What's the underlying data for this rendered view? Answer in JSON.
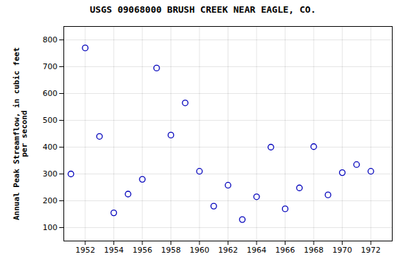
{
  "chart_data": {
    "type": "scatter",
    "title": "USGS 09068000 BRUSH CREEK NEAR EAGLE, CO.",
    "ylabel": "Annual Peak Streamflow, in cubic feet\nper second",
    "x": [
      1951,
      1952,
      1953,
      1954,
      1955,
      1956,
      1957,
      1958,
      1959,
      1960,
      1961,
      1962,
      1963,
      1964,
      1965,
      1966,
      1967,
      1968,
      1969,
      1970,
      1971,
      1972
    ],
    "values": [
      300,
      770,
      440,
      155,
      225,
      280,
      695,
      445,
      565,
      310,
      180,
      258,
      130,
      215,
      400,
      170,
      248,
      402,
      222,
      305,
      335,
      310
    ],
    "color": "#0000bb",
    "xlim": [
      1950.5,
      1973.5
    ],
    "ylim": [
      50,
      850
    ],
    "xticks": [
      1952,
      1954,
      1956,
      1958,
      1960,
      1962,
      1964,
      1966,
      1968,
      1970,
      1972
    ],
    "yticks": [
      100,
      200,
      300,
      400,
      500,
      600,
      700,
      800
    ],
    "grid": true
  }
}
